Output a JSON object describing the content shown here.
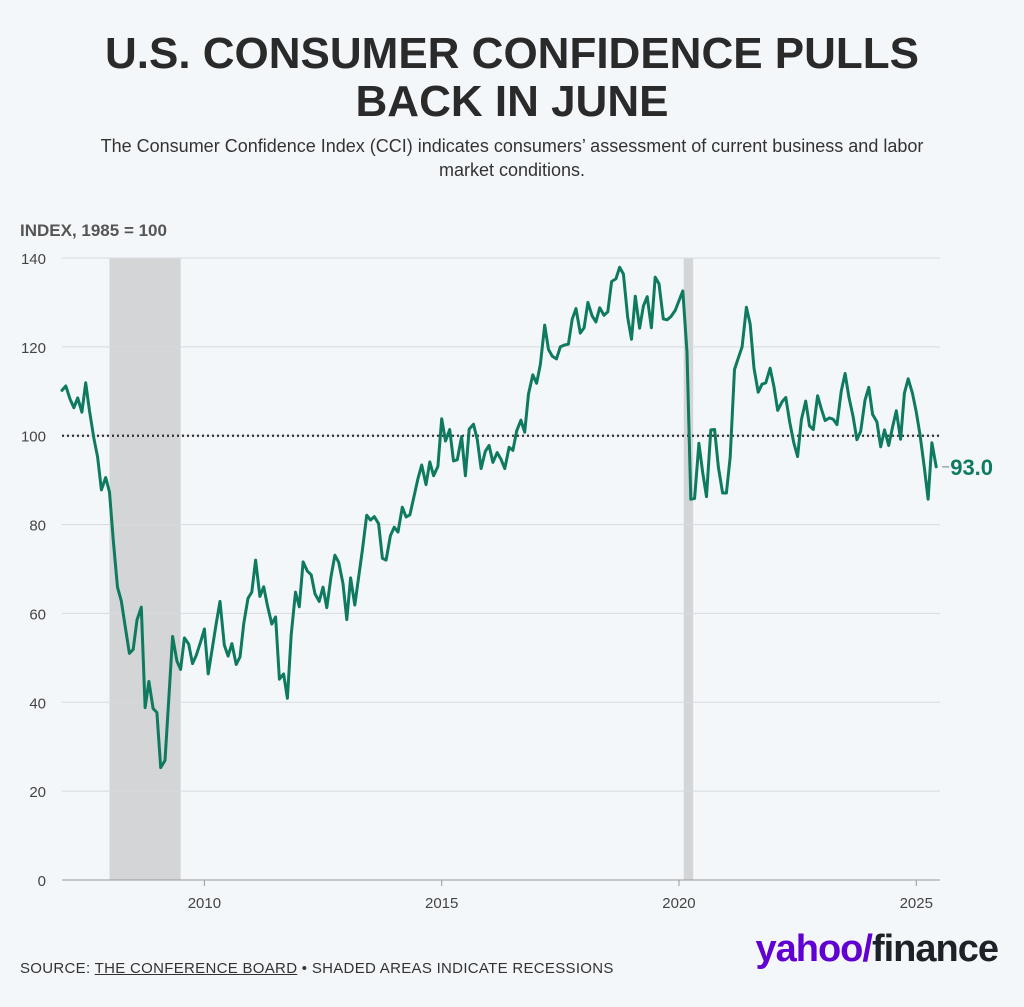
{
  "header": {
    "title_line1": "U.S. CONSUMER CONFIDENCE PULLS",
    "title_line2": "BACK IN JUNE",
    "subtitle_line1": "The Consumer Confidence Index (CCI) indicates consumers’ assessment of current business and labor",
    "subtitle_line2": "market conditions."
  },
  "footer": {
    "source_prefix": "SOURCE: ",
    "source_link": "THE CONFERENCE BOARD",
    "source_suffix": " • SHADED AREAS INDICATE RECESSIONS",
    "logo_part1": "yahoo/",
    "logo_part2": "finance"
  },
  "colors": {
    "line": "#0e7a5f",
    "recession": "#d4d5d7",
    "grid": "#d6dade",
    "reference": "#333333"
  },
  "chart_data": {
    "type": "line",
    "ylabel": "INDEX, 1985 = 100",
    "ylim": [
      0,
      140
    ],
    "yticks": [
      0,
      20,
      40,
      60,
      80,
      100,
      120,
      140
    ],
    "xlim": [
      2007.0,
      2025.5
    ],
    "xticks": [
      2010,
      2015,
      2020,
      2025
    ],
    "xtick_labels": [
      "2010",
      "2015",
      "2020",
      "2025"
    ],
    "reference_line": 100,
    "end_label": "93.0",
    "recessions": [
      [
        2008.0,
        2009.5
      ],
      [
        2020.1,
        2020.3
      ]
    ],
    "series": [
      {
        "points": [
          [
            2007.0,
            110.2
          ],
          [
            2007.08,
            111.2
          ],
          [
            2007.17,
            108.2
          ],
          [
            2007.25,
            106.3
          ],
          [
            2007.33,
            108.5
          ],
          [
            2007.42,
            105.3
          ],
          [
            2007.5,
            111.9
          ],
          [
            2007.58,
            105.6
          ],
          [
            2007.67,
            99.5
          ],
          [
            2007.75,
            95.2
          ],
          [
            2007.83,
            87.8
          ],
          [
            2007.92,
            90.6
          ],
          [
            2008.0,
            87.3
          ],
          [
            2008.08,
            76.4
          ],
          [
            2008.17,
            65.9
          ],
          [
            2008.25,
            62.8
          ],
          [
            2008.33,
            57.2
          ],
          [
            2008.42,
            51.0
          ],
          [
            2008.5,
            51.9
          ],
          [
            2008.58,
            58.5
          ],
          [
            2008.67,
            61.4
          ],
          [
            2008.75,
            38.8
          ],
          [
            2008.83,
            44.7
          ],
          [
            2008.92,
            38.6
          ],
          [
            2009.0,
            37.7
          ],
          [
            2009.08,
            25.3
          ],
          [
            2009.17,
            26.9
          ],
          [
            2009.25,
            40.8
          ],
          [
            2009.33,
            54.8
          ],
          [
            2009.42,
            49.3
          ],
          [
            2009.5,
            47.4
          ],
          [
            2009.58,
            54.5
          ],
          [
            2009.67,
            53.1
          ],
          [
            2009.75,
            48.7
          ],
          [
            2009.83,
            50.6
          ],
          [
            2009.92,
            53.6
          ],
          [
            2010.0,
            56.5
          ],
          [
            2010.08,
            46.4
          ],
          [
            2010.17,
            52.3
          ],
          [
            2010.25,
            57.7
          ],
          [
            2010.33,
            62.7
          ],
          [
            2010.42,
            52.9
          ],
          [
            2010.5,
            50.4
          ],
          [
            2010.58,
            53.2
          ],
          [
            2010.67,
            48.5
          ],
          [
            2010.75,
            50.2
          ],
          [
            2010.83,
            57.8
          ],
          [
            2010.92,
            63.4
          ],
          [
            2011.0,
            64.8
          ],
          [
            2011.08,
            72.0
          ],
          [
            2011.17,
            63.8
          ],
          [
            2011.25,
            66.0
          ],
          [
            2011.33,
            61.7
          ],
          [
            2011.42,
            57.6
          ],
          [
            2011.5,
            59.2
          ],
          [
            2011.58,
            45.2
          ],
          [
            2011.67,
            46.4
          ],
          [
            2011.75,
            40.9
          ],
          [
            2011.83,
            55.2
          ],
          [
            2011.92,
            64.8
          ],
          [
            2012.0,
            61.5
          ],
          [
            2012.08,
            71.6
          ],
          [
            2012.17,
            69.5
          ],
          [
            2012.25,
            68.7
          ],
          [
            2012.33,
            64.4
          ],
          [
            2012.42,
            62.7
          ],
          [
            2012.5,
            65.9
          ],
          [
            2012.58,
            61.3
          ],
          [
            2012.67,
            68.4
          ],
          [
            2012.75,
            73.1
          ],
          [
            2012.83,
            71.5
          ],
          [
            2012.92,
            66.7
          ],
          [
            2013.0,
            58.6
          ],
          [
            2013.08,
            68.0
          ],
          [
            2013.17,
            61.9
          ],
          [
            2013.25,
            68.1
          ],
          [
            2013.33,
            74.3
          ],
          [
            2013.42,
            82.1
          ],
          [
            2013.5,
            81.0
          ],
          [
            2013.58,
            81.8
          ],
          [
            2013.67,
            80.2
          ],
          [
            2013.75,
            72.4
          ],
          [
            2013.83,
            72.0
          ],
          [
            2013.92,
            77.5
          ],
          [
            2014.0,
            79.4
          ],
          [
            2014.08,
            78.3
          ],
          [
            2014.17,
            83.9
          ],
          [
            2014.25,
            81.7
          ],
          [
            2014.33,
            82.2
          ],
          [
            2014.42,
            86.4
          ],
          [
            2014.5,
            90.3
          ],
          [
            2014.58,
            93.4
          ],
          [
            2014.67,
            89.0
          ],
          [
            2014.75,
            94.1
          ],
          [
            2014.83,
            91.0
          ],
          [
            2014.92,
            93.1
          ],
          [
            2015.0,
            103.8
          ],
          [
            2015.08,
            98.8
          ],
          [
            2015.17,
            101.4
          ],
          [
            2015.25,
            94.3
          ],
          [
            2015.33,
            94.6
          ],
          [
            2015.42,
            99.8
          ],
          [
            2015.5,
            91.0
          ],
          [
            2015.58,
            101.5
          ],
          [
            2015.67,
            102.6
          ],
          [
            2015.75,
            99.1
          ],
          [
            2015.83,
            92.6
          ],
          [
            2015.92,
            96.5
          ],
          [
            2016.0,
            97.8
          ],
          [
            2016.08,
            94.0
          ],
          [
            2016.17,
            96.2
          ],
          [
            2016.25,
            94.7
          ],
          [
            2016.33,
            92.6
          ],
          [
            2016.42,
            97.4
          ],
          [
            2016.5,
            96.7
          ],
          [
            2016.58,
            101.1
          ],
          [
            2016.67,
            103.5
          ],
          [
            2016.75,
            100.8
          ],
          [
            2016.83,
            109.4
          ],
          [
            2016.92,
            113.7
          ],
          [
            2017.0,
            111.8
          ],
          [
            2017.08,
            116.1
          ],
          [
            2017.17,
            124.9
          ],
          [
            2017.25,
            119.4
          ],
          [
            2017.33,
            117.9
          ],
          [
            2017.42,
            117.3
          ],
          [
            2017.5,
            120.0
          ],
          [
            2017.58,
            120.4
          ],
          [
            2017.67,
            120.6
          ],
          [
            2017.75,
            126.2
          ],
          [
            2017.83,
            128.6
          ],
          [
            2017.92,
            123.1
          ],
          [
            2018.0,
            124.3
          ],
          [
            2018.08,
            130.0
          ],
          [
            2018.17,
            127.0
          ],
          [
            2018.25,
            125.6
          ],
          [
            2018.33,
            128.8
          ],
          [
            2018.42,
            127.1
          ],
          [
            2018.5,
            127.9
          ],
          [
            2018.58,
            134.7
          ],
          [
            2018.67,
            135.3
          ],
          [
            2018.75,
            137.9
          ],
          [
            2018.83,
            136.4
          ],
          [
            2018.92,
            126.6
          ],
          [
            2019.0,
            121.7
          ],
          [
            2019.08,
            131.4
          ],
          [
            2019.17,
            124.2
          ],
          [
            2019.25,
            129.2
          ],
          [
            2019.33,
            131.3
          ],
          [
            2019.42,
            124.3
          ],
          [
            2019.5,
            135.7
          ],
          [
            2019.58,
            134.2
          ],
          [
            2019.67,
            126.3
          ],
          [
            2019.75,
            126.1
          ],
          [
            2019.83,
            126.8
          ],
          [
            2019.92,
            128.2
          ],
          [
            2020.0,
            130.4
          ],
          [
            2020.08,
            132.6
          ],
          [
            2020.17,
            118.8
          ],
          [
            2020.25,
            85.7
          ],
          [
            2020.33,
            85.9
          ],
          [
            2020.42,
            98.3
          ],
          [
            2020.5,
            91.7
          ],
          [
            2020.58,
            86.3
          ],
          [
            2020.67,
            101.3
          ],
          [
            2020.75,
            101.4
          ],
          [
            2020.83,
            92.9
          ],
          [
            2020.92,
            87.1
          ],
          [
            2021.0,
            87.1
          ],
          [
            2021.08,
            95.2
          ],
          [
            2021.17,
            114.9
          ],
          [
            2021.25,
            117.5
          ],
          [
            2021.33,
            120.0
          ],
          [
            2021.42,
            128.9
          ],
          [
            2021.5,
            125.1
          ],
          [
            2021.58,
            115.2
          ],
          [
            2021.67,
            109.8
          ],
          [
            2021.75,
            111.6
          ],
          [
            2021.83,
            111.9
          ],
          [
            2021.92,
            115.2
          ],
          [
            2022.0,
            111.1
          ],
          [
            2022.08,
            105.7
          ],
          [
            2022.17,
            107.6
          ],
          [
            2022.25,
            108.6
          ],
          [
            2022.33,
            103.2
          ],
          [
            2022.42,
            98.4
          ],
          [
            2022.5,
            95.3
          ],
          [
            2022.58,
            103.6
          ],
          [
            2022.67,
            107.8
          ],
          [
            2022.75,
            102.2
          ],
          [
            2022.83,
            101.4
          ],
          [
            2022.92,
            109.0
          ],
          [
            2023.0,
            106.0
          ],
          [
            2023.08,
            103.4
          ],
          [
            2023.17,
            104.0
          ],
          [
            2023.25,
            103.7
          ],
          [
            2023.33,
            102.5
          ],
          [
            2023.42,
            110.1
          ],
          [
            2023.5,
            114.0
          ],
          [
            2023.58,
            108.7
          ],
          [
            2023.67,
            104.3
          ],
          [
            2023.75,
            99.1
          ],
          [
            2023.83,
            101.0
          ],
          [
            2023.92,
            108.0
          ],
          [
            2024.0,
            110.9
          ],
          [
            2024.08,
            104.8
          ],
          [
            2024.17,
            103.1
          ],
          [
            2024.25,
            97.5
          ],
          [
            2024.33,
            101.3
          ],
          [
            2024.42,
            97.8
          ],
          [
            2024.5,
            101.9
          ],
          [
            2024.58,
            105.6
          ],
          [
            2024.67,
            99.2
          ],
          [
            2024.75,
            109.6
          ],
          [
            2024.83,
            112.8
          ],
          [
            2024.92,
            109.5
          ],
          [
            2025.0,
            105.3
          ],
          [
            2025.08,
            100.1
          ],
          [
            2025.17,
            92.9
          ],
          [
            2025.25,
            85.7
          ],
          [
            2025.33,
            98.4
          ],
          [
            2025.42,
            93.0
          ]
        ]
      }
    ]
  }
}
